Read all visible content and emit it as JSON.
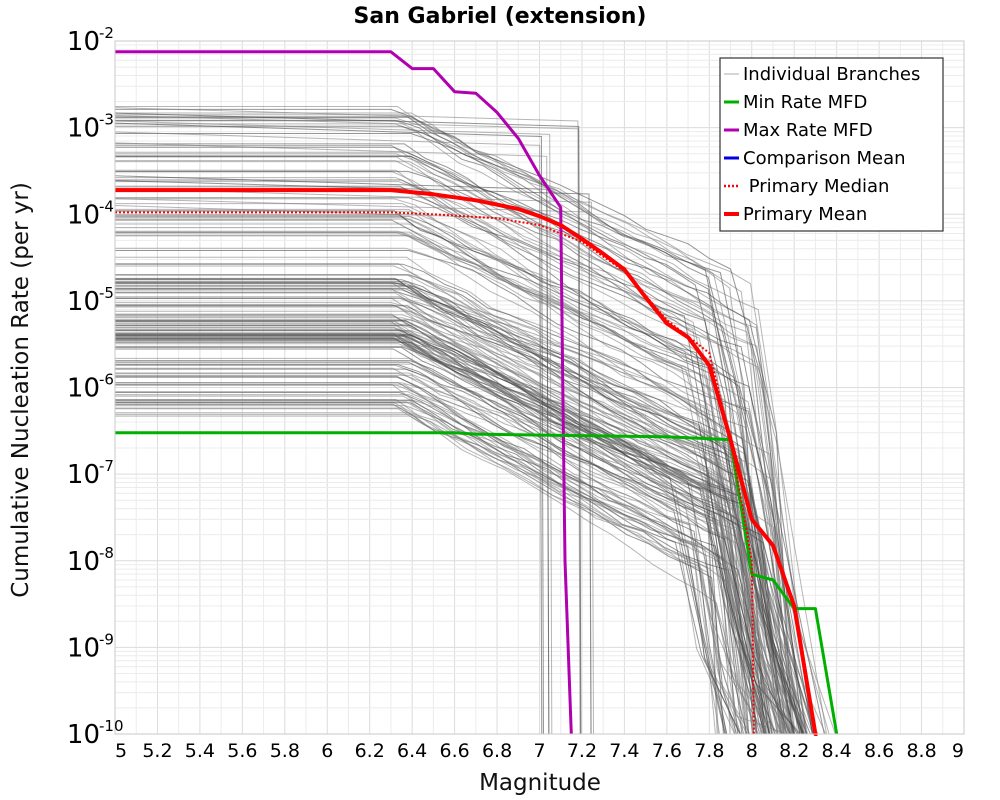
{
  "chart_data": {
    "type": "line",
    "title": "San Gabriel (extension)",
    "xlabel": "Magnitude",
    "ylabel": "Cumulative Nucleation Rate (per yr)",
    "xlim": [
      5,
      9
    ],
    "ylim": [
      1e-10,
      0.01
    ],
    "yscale": "log",
    "grid": true,
    "legend_position": "top-right",
    "x_ticks": [
      "5",
      "5.2",
      "5.4",
      "5.6",
      "5.8",
      "6",
      "6.2",
      "6.4",
      "6.6",
      "6.8",
      "7",
      "7.2",
      "7.4",
      "7.6",
      "7.8",
      "8",
      "8.2",
      "8.4",
      "8.6",
      "8.8",
      "9"
    ],
    "y_ticks": [
      {
        "base": "10",
        "exp": "-2",
        "value": 0.01
      },
      {
        "base": "10",
        "exp": "-3",
        "value": 0.001
      },
      {
        "base": "10",
        "exp": "-4",
        "value": 0.0001
      },
      {
        "base": "10",
        "exp": "-5",
        "value": 1e-05
      },
      {
        "base": "10",
        "exp": "-6",
        "value": 1e-06
      },
      {
        "base": "10",
        "exp": "-7",
        "value": 1e-07
      },
      {
        "base": "10",
        "exp": "-8",
        "value": 1e-08
      },
      {
        "base": "10",
        "exp": "-9",
        "value": 1e-09
      },
      {
        "base": "10",
        "exp": "-10",
        "value": 1e-10
      }
    ],
    "legend": [
      {
        "label": "Individual Branches",
        "color": "#c8c8c8",
        "style": "solid-thin"
      },
      {
        "label": "Min Rate MFD",
        "color": "#00b000",
        "style": "solid"
      },
      {
        "label": "Max Rate MFD",
        "color": "#b000b0",
        "style": "solid"
      },
      {
        "label": "Comparison Mean",
        "color": "#0000e0",
        "style": "solid"
      },
      {
        "label": " Primary Median",
        "color": "#ff0000",
        "style": "dotted"
      },
      {
        "label": "Primary Mean",
        "color": "#ff0000",
        "style": "solid-thick"
      }
    ],
    "series": [
      {
        "name": "Max Rate MFD",
        "color": "#b000b0",
        "x": [
          5.0,
          6.3,
          6.4,
          6.5,
          6.6,
          6.7,
          6.8,
          6.9,
          7.0,
          7.1,
          7.11,
          7.12,
          7.15
        ],
        "y": [
          0.0075,
          0.0075,
          0.0048,
          0.0048,
          0.0026,
          0.0025,
          0.0015,
          0.00075,
          0.00028,
          0.00012,
          1e-06,
          1e-08,
          1e-10
        ]
      },
      {
        "name": "Min Rate MFD",
        "color": "#00b000",
        "x": [
          5.0,
          6.6,
          6.7,
          7.1,
          7.6,
          7.9,
          8.0,
          8.1,
          8.2,
          8.3,
          8.4
        ],
        "y": [
          3e-07,
          3e-07,
          2.9e-07,
          2.8e-07,
          2.7e-07,
          2.5e-07,
          7e-09,
          6e-09,
          2.8e-09,
          2.8e-09,
          1e-10
        ]
      },
      {
        "name": "Primary Median",
        "color": "#ff0000",
        "dashed": true,
        "x": [
          5.0,
          6.3,
          6.5,
          6.8,
          7.0,
          7.2,
          7.4,
          7.6,
          7.8,
          7.9,
          8.0,
          8.01
        ],
        "y": [
          0.000105,
          0.000105,
          0.0001,
          9e-05,
          7.5e-05,
          4.8e-05,
          2.2e-05,
          6e-06,
          2.5e-06,
          2.5e-07,
          1e-08,
          1e-10
        ]
      },
      {
        "name": "Primary Mean",
        "color": "#ff0000",
        "x": [
          5.0,
          6.3,
          6.5,
          6.7,
          6.9,
          7.0,
          7.1,
          7.2,
          7.3,
          7.4,
          7.5,
          7.6,
          7.7,
          7.8,
          7.9,
          8.0,
          8.1,
          8.2,
          8.3,
          8.31
        ],
        "y": [
          0.00019,
          0.00019,
          0.00017,
          0.000145,
          0.000115,
          9.5e-05,
          7.5e-05,
          5.2e-05,
          3.5e-05,
          2.3e-05,
          1.1e-05,
          5.5e-06,
          3.8e-06,
          1.8e-06,
          2.5e-07,
          3e-08,
          1.5e-08,
          3e-09,
          1e-10,
          1e-10
        ]
      }
    ],
    "branch_groups": [
      {
        "name": "upper-branches",
        "flat_min": 2.5e-05,
        "flat_max": 0.002,
        "break_min": 6.3,
        "break_max": 6.4,
        "drop_mid": 7.9
      },
      {
        "name": "middle-branches",
        "flat_min": 3.5e-06,
        "flat_max": 2e-05,
        "break_min": 6.3,
        "break_max": 6.4,
        "drop_mid": 7.95
      },
      {
        "name": "lower-branches",
        "flat_min": 4.5e-07,
        "flat_max": 5e-06,
        "break_min": 6.3,
        "break_max": 6.4,
        "drop_mid": 7.85
      },
      {
        "name": "vertical-drop-branches",
        "flat_min": 0.0001,
        "flat_max": 0.002,
        "drops_at": [
          7.02,
          7.05,
          7.2,
          7.25
        ]
      }
    ]
  }
}
